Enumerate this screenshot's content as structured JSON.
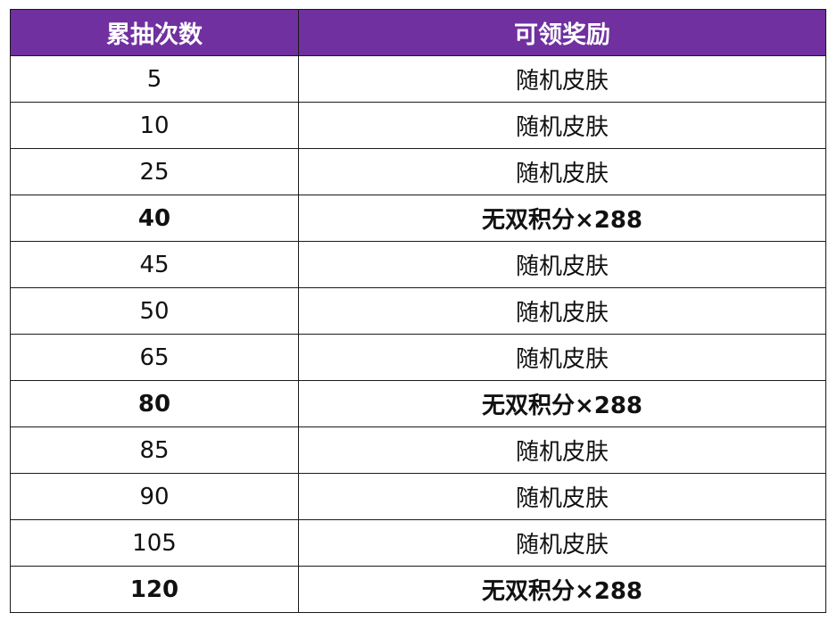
{
  "table": {
    "headers": [
      "累抽次数",
      "可领奖励"
    ],
    "header_color": "#7030a0",
    "rows": [
      {
        "count": "5",
        "reward": "随机皮肤",
        "bold": false
      },
      {
        "count": "10",
        "reward": "随机皮肤",
        "bold": false
      },
      {
        "count": "25",
        "reward": "随机皮肤",
        "bold": false
      },
      {
        "count": "40",
        "reward": "无双积分×288",
        "bold": true
      },
      {
        "count": "45",
        "reward": "随机皮肤",
        "bold": false
      },
      {
        "count": "50",
        "reward": "随机皮肤",
        "bold": false
      },
      {
        "count": "65",
        "reward": "随机皮肤",
        "bold": false
      },
      {
        "count": "80",
        "reward": "无双积分×288",
        "bold": true
      },
      {
        "count": "85",
        "reward": "随机皮肤",
        "bold": false
      },
      {
        "count": "90",
        "reward": "随机皮肤",
        "bold": false
      },
      {
        "count": "105",
        "reward": "随机皮肤",
        "bold": false
      },
      {
        "count": "120",
        "reward": "无双积分×288",
        "bold": true
      }
    ]
  }
}
